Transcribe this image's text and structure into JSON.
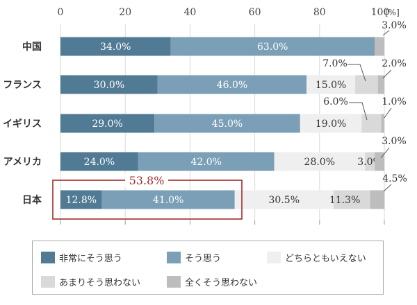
{
  "chart_data": {
    "type": "bar",
    "orientation": "horizontal",
    "stacked": true,
    "xlim": [
      0,
      100
    ],
    "x_ticks": [
      "0",
      "20",
      "40",
      "60",
      "80",
      "100"
    ],
    "x_unit": "[%]",
    "grid": true,
    "categories": [
      "中国",
      "フランス",
      "イギリス",
      "アメリカ",
      "日本"
    ],
    "series": [
      {
        "name": "非常にそう思う",
        "color": "#517a94",
        "values": [
          34.0,
          30.0,
          29.0,
          24.0,
          12.8
        ]
      },
      {
        "name": "そう思う",
        "color": "#7b9fb6",
        "values": [
          63.0,
          46.0,
          45.0,
          42.0,
          41.0
        ]
      },
      {
        "name": "どちらともいえない",
        "color": "#efefef",
        "values": [
          0,
          15.0,
          19.0,
          28.0,
          30.5
        ]
      },
      {
        "name": "あまりそう思わない",
        "color": "#d9d9d9",
        "values": [
          0,
          7.0,
          6.0,
          3.0,
          11.3
        ]
      },
      {
        "name": "全くそう思わない",
        "color": "#bdbdbd",
        "values": [
          3.0,
          2.0,
          1.0,
          3.0,
          4.5
        ]
      }
    ],
    "data_labels": [
      [
        "34.0%",
        "63.0%",
        "",
        "",
        "3.0%"
      ],
      [
        "30.0%",
        "46.0%",
        "15.0%",
        "7.0%",
        "2.0%"
      ],
      [
        "29.0%",
        "45.0%",
        "19.0%",
        "6.0%",
        "1.0%"
      ],
      [
        "24.0%",
        "42.0%",
        "28.0%",
        "3.0%",
        ""
      ],
      [
        "12.8%",
        "41.0%",
        "30.5%",
        "11.3%",
        "4.5%"
      ]
    ],
    "annotation": {
      "text": "53.8%",
      "category": "日本",
      "color": "#a52a2a"
    },
    "legend_position": "bottom"
  }
}
